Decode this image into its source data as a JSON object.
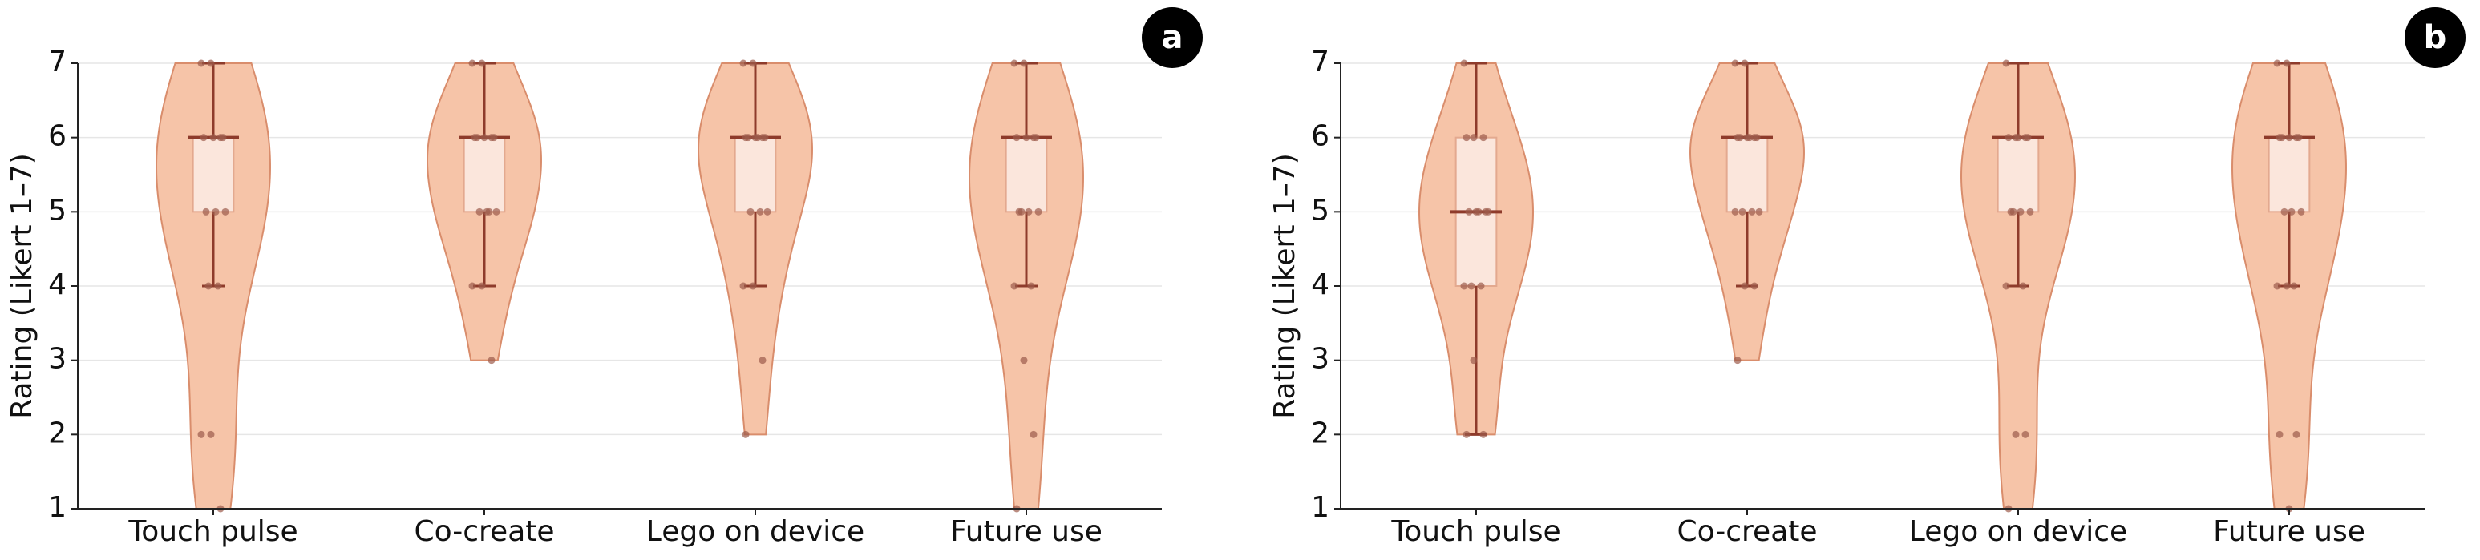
{
  "chart_data": [
    {
      "type": "violin",
      "label": "a",
      "ylabel": "Rating (Likert 1–7)",
      "categories": [
        "Touch pulse",
        "Co-create",
        "Lego on device",
        "Future use"
      ],
      "points": [
        [
          7,
          7,
          6,
          6,
          6,
          6,
          5,
          5,
          5,
          4,
          4,
          2,
          2,
          1
        ],
        [
          7,
          7,
          6,
          6,
          6,
          6,
          6,
          5,
          5,
          5,
          5,
          4,
          4,
          3
        ],
        [
          7,
          7,
          6,
          6,
          6,
          6,
          6,
          6,
          5,
          5,
          5,
          4,
          4,
          3,
          2
        ],
        [
          7,
          7,
          6,
          6,
          6,
          6,
          5,
          5,
          5,
          5,
          4,
          4,
          3,
          2,
          1
        ]
      ],
      "boxes": [
        {
          "low": 4,
          "q1": 5,
          "median": 6,
          "q3": 6,
          "high": 7
        },
        {
          "low": 4,
          "q1": 5,
          "median": 6,
          "q3": 6,
          "high": 7
        },
        {
          "low": 4,
          "q1": 5,
          "median": 6,
          "q3": 6,
          "high": 7
        },
        {
          "low": 4,
          "q1": 5,
          "median": 6,
          "q3": 6,
          "high": 7
        }
      ],
      "ylim": [
        1,
        7
      ],
      "yticks": [
        1,
        2,
        3,
        4,
        5,
        6,
        7
      ],
      "grid": true,
      "color": "#f6c4a8"
    },
    {
      "type": "violin",
      "label": "b",
      "ylabel": "Rating (Likert 1–7)",
      "categories": [
        "Touch pulse",
        "Co-create",
        "Lego on device",
        "Future use"
      ],
      "points": [
        [
          7,
          6,
          6,
          6,
          5,
          5,
          5,
          5,
          5,
          4,
          4,
          4,
          3,
          2,
          2
        ],
        [
          7,
          7,
          6,
          6,
          6,
          6,
          6,
          6,
          5,
          5,
          5,
          5,
          4,
          4,
          3
        ],
        [
          7,
          6,
          6,
          6,
          6,
          6,
          5,
          5,
          5,
          5,
          4,
          4,
          2,
          2,
          1
        ],
        [
          7,
          7,
          6,
          6,
          6,
          6,
          6,
          5,
          5,
          5,
          4,
          4,
          4,
          2,
          2,
          1
        ]
      ],
      "boxes": [
        {
          "low": 2,
          "q1": 4,
          "median": 5,
          "q3": 6,
          "high": 7
        },
        {
          "low": 4,
          "q1": 5,
          "median": 6,
          "q3": 6,
          "high": 7
        },
        {
          "low": 4,
          "q1": 5,
          "median": 6,
          "q3": 6,
          "high": 7
        },
        {
          "low": 4,
          "q1": 5,
          "median": 6,
          "q3": 6,
          "high": 7
        }
      ],
      "ylim": [
        1,
        7
      ],
      "yticks": [
        1,
        2,
        3,
        4,
        5,
        6,
        7
      ],
      "grid": true,
      "color": "#f6c4a8"
    }
  ]
}
